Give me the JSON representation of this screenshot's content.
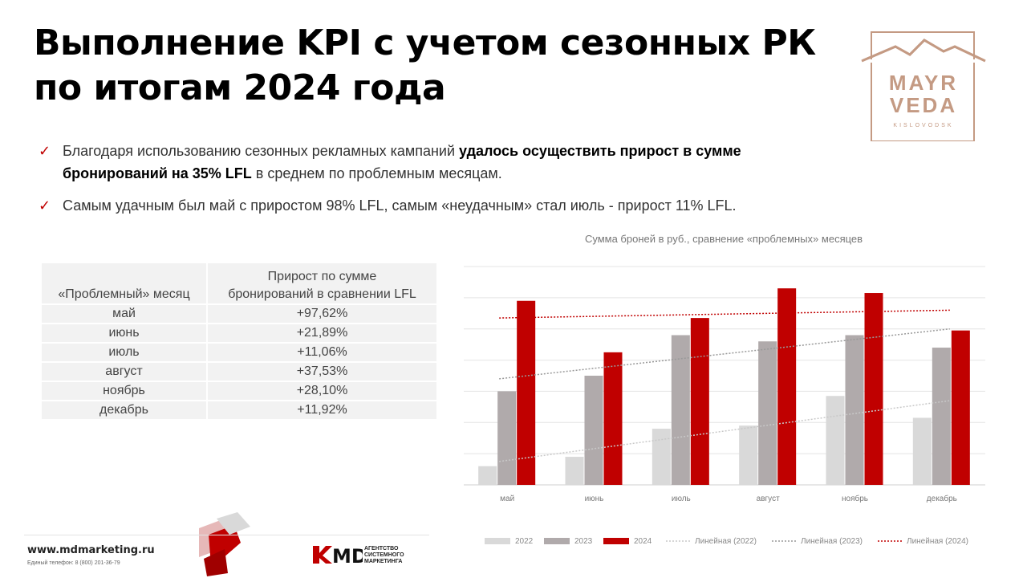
{
  "title": {
    "line1": "Выполнение KPI с учетом сезонных РК",
    "line2": "по итогам 2024 года"
  },
  "bullets": [
    {
      "pre": "Благодаря использованию сезонных рекламных кампаний ",
      "bold": "удалось осуществить прирост в сумме бронирований на 35% LFL",
      "post": " в среднем по проблемным месяцам."
    },
    {
      "text": "Самым удачным был май с приростом 98% LFL, самым «неудачным» стал июль - прирост 11% LFL."
    }
  ],
  "logo": {
    "line1": "MAYR",
    "line2": "VEDA",
    "sub": "KISLOVODSK",
    "color": "#c49a83"
  },
  "table": {
    "header": {
      "col1": "«Проблемный» месяц",
      "col2_line1": "Прирост по сумме",
      "col2_line2": "бронирований в сравнении LFL"
    },
    "rows": [
      {
        "month": "май",
        "value": "+97,62%"
      },
      {
        "month": "июнь",
        "value": "+21,89%"
      },
      {
        "month": "июль",
        "value": "+11,06%"
      },
      {
        "month": "август",
        "value": "+37,53%"
      },
      {
        "month": "ноябрь",
        "value": "+28,10%"
      },
      {
        "month": "декабрь",
        "value": "+11,92%"
      }
    ]
  },
  "chart_data": {
    "type": "bar",
    "title": "Сумма броней в руб., сравнение «проблемных» месяцев",
    "categories": [
      "май",
      "июнь",
      "июль",
      "август",
      "ноябрь",
      "декабрь"
    ],
    "ylim": [
      0,
      7
    ],
    "gridlines": 7,
    "series": [
      {
        "name": "2022",
        "values": [
          0.6,
          0.9,
          1.8,
          1.9,
          2.85,
          2.15
        ],
        "color": "#d9d9d9"
      },
      {
        "name": "2023",
        "values": [
          3.0,
          3.5,
          4.8,
          4.6,
          4.8,
          4.4
        ],
        "color": "#b0aaab"
      },
      {
        "name": "2024",
        "values": [
          5.9,
          4.25,
          5.35,
          6.3,
          6.15,
          4.95
        ],
        "color": "#c00000"
      }
    ],
    "trendlines": [
      {
        "name": "Линейная (2022)",
        "start": 0.75,
        "end": 2.7,
        "color": "#c8c8c8"
      },
      {
        "name": "Линейная (2023)",
        "start": 3.4,
        "end": 5.0,
        "color": "#999999"
      },
      {
        "name": "Линейная (2024)",
        "start": 5.35,
        "end": 5.6,
        "color": "#c00000"
      }
    ]
  },
  "footer": {
    "site": "www.mdmarketing.ru",
    "phone": "Единый телефон: 8 (800) 201-36-79",
    "agency_line1": "АГЕНТСТВО",
    "agency_line2": "СИСТЕМНОГО",
    "agency_line3": "МАРКЕТИНГА",
    "md_mark": "MD"
  }
}
